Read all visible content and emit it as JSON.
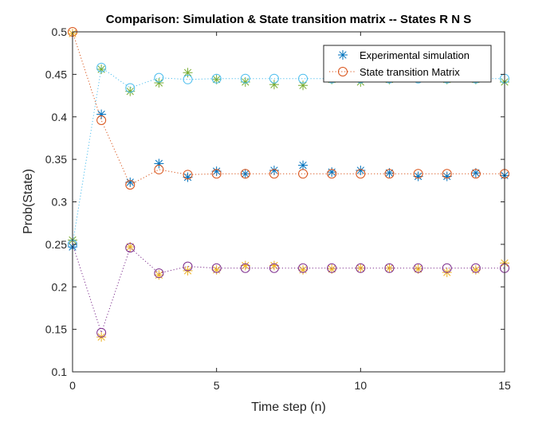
{
  "chart_data": {
    "type": "scatter",
    "title": "Comparison: Simulation & State transition matrix -- States R N S",
    "xlabel": "Time step (n)",
    "ylabel": "Prob(State)",
    "xlim": [
      0,
      15
    ],
    "ylim": [
      0.1,
      0.5
    ],
    "x_ticks": [
      0,
      5,
      10,
      15
    ],
    "x_tick_labels": [
      "0",
      "5",
      "10",
      "15"
    ],
    "y_ticks": [
      0.1,
      0.15,
      0.2,
      0.25,
      0.3,
      0.35,
      0.4,
      0.45,
      0.5
    ],
    "y_tick_labels": [
      "0.1",
      "0.15",
      "0.2",
      "0.25",
      "0.3",
      "0.35",
      "0.4",
      "0.45",
      "0.5"
    ],
    "grid": false,
    "legend_position": "top-right",
    "x": [
      0,
      1,
      2,
      3,
      4,
      5,
      6,
      7,
      8,
      9,
      10,
      11,
      12,
      13,
      14,
      15
    ],
    "series": [
      {
        "name": "Experimental simulation",
        "marker": "asterisk",
        "color": "#0072BD",
        "values": [
          0.247,
          0.403,
          0.323,
          0.345,
          0.329,
          0.336,
          0.333,
          0.337,
          0.343,
          0.335,
          0.337,
          0.334,
          0.33,
          0.33,
          0.334,
          0.331
        ]
      },
      {
        "name": "State transition Matrix",
        "marker": "circle",
        "color": "#D95319",
        "line": "dotted",
        "values": [
          0.5,
          0.396,
          0.32,
          0.338,
          0.332,
          0.333,
          0.333,
          0.333,
          0.333,
          0.333,
          0.333,
          0.333,
          0.333,
          0.333,
          0.333,
          0.333
        ]
      },
      {
        "marker": "asterisk",
        "color": "#EDB120",
        "values": [
          0.498,
          0.141,
          0.247,
          0.214,
          0.219,
          0.22,
          0.225,
          0.225,
          0.22,
          0.221,
          0.222,
          0.222,
          0.221,
          0.217,
          0.22,
          0.228
        ]
      },
      {
        "marker": "circle",
        "color": "#7E2F8E",
        "line": "dotted",
        "values": [
          0.25,
          0.146,
          0.246,
          0.216,
          0.224,
          0.222,
          0.222,
          0.222,
          0.222,
          0.222,
          0.222,
          0.222,
          0.222,
          0.222,
          0.222,
          0.222
        ]
      },
      {
        "marker": "asterisk",
        "color": "#77AC30",
        "values": [
          0.255,
          0.456,
          0.43,
          0.44,
          0.452,
          0.444,
          0.441,
          0.438,
          0.437,
          0.444,
          0.441,
          0.444,
          0.446,
          0.444,
          0.444,
          0.441
        ]
      },
      {
        "marker": "circle",
        "color": "#4DBEEE",
        "line": "dotted",
        "values": [
          0.25,
          0.458,
          0.434,
          0.446,
          0.444,
          0.445,
          0.445,
          0.445,
          0.445,
          0.445,
          0.445,
          0.445,
          0.445,
          0.445,
          0.445,
          0.445
        ]
      }
    ]
  }
}
